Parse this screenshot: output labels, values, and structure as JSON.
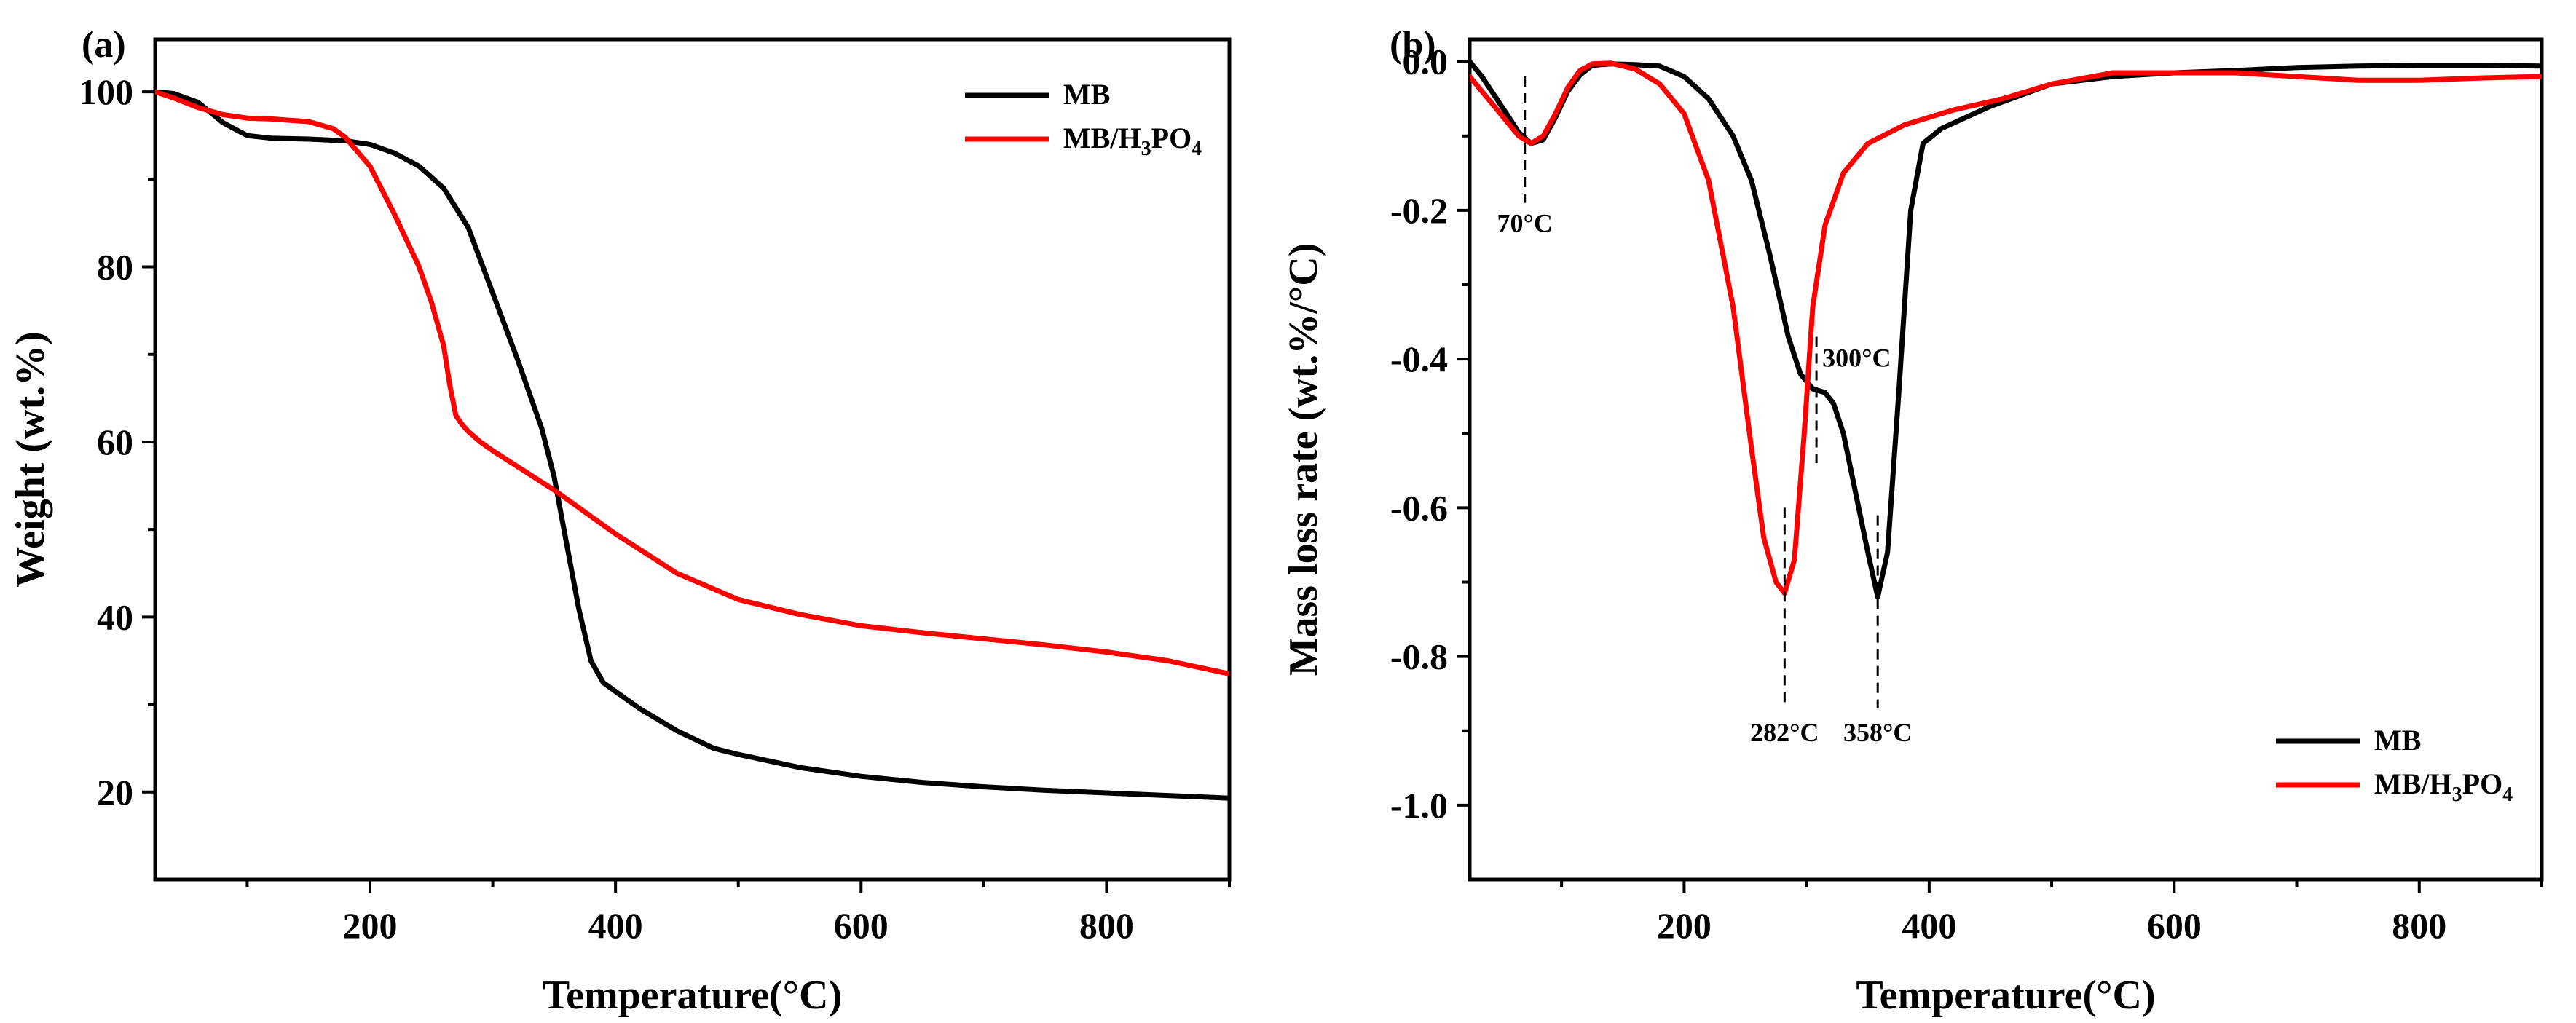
{
  "chart_data": [
    {
      "type": "line",
      "panel_label": "(a)",
      "xlabel": "Temperature(°C)",
      "ylabel": "Weight (wt.%)",
      "xlim": [
        25,
        900
      ],
      "ylim": [
        10,
        106
      ],
      "xticks": [
        200,
        400,
        600,
        800
      ],
      "yticks": [
        20,
        40,
        60,
        80,
        100
      ],
      "legend_position": "top-right",
      "series": [
        {
          "name": "MB",
          "color": "#000000",
          "x": [
            25,
            40,
            60,
            80,
            100,
            120,
            150,
            180,
            200,
            220,
            240,
            260,
            280,
            300,
            320,
            340,
            350,
            360,
            370,
            380,
            390,
            400,
            420,
            450,
            480,
            500,
            550,
            600,
            650,
            700,
            750,
            800,
            850,
            900
          ],
          "y": [
            100,
            99.8,
            98.8,
            96.5,
            95.0,
            94.7,
            94.6,
            94.4,
            94.0,
            93.0,
            91.5,
            89.0,
            84.5,
            77.0,
            69.5,
            61.5,
            56.0,
            48.5,
            41.0,
            35.0,
            32.5,
            31.5,
            29.5,
            27.0,
            25.0,
            24.3,
            22.8,
            21.8,
            21.1,
            20.6,
            20.2,
            19.9,
            19.6,
            19.3
          ]
        },
        {
          "name": "MB/H₃PO₄",
          "legend_name_base": "MB/H",
          "legend_sub1": "3",
          "legend_mid": "PO",
          "legend_sub2": "4",
          "color": "#ff0000",
          "x": [
            25,
            40,
            60,
            80,
            100,
            120,
            150,
            170,
            180,
            200,
            220,
            240,
            250,
            260,
            265,
            270,
            275,
            280,
            290,
            300,
            350,
            400,
            450,
            500,
            550,
            600,
            650,
            700,
            750,
            800,
            850,
            900
          ],
          "y": [
            100,
            99.3,
            98.2,
            97.4,
            97.0,
            96.9,
            96.6,
            95.8,
            94.8,
            91.5,
            86.0,
            80.0,
            76.0,
            71.0,
            66.5,
            63.0,
            62.0,
            61.2,
            60.0,
            59.0,
            54.5,
            49.5,
            45.0,
            42.0,
            40.3,
            39.0,
            38.2,
            37.5,
            36.8,
            36.0,
            35.0,
            33.5
          ]
        }
      ]
    },
    {
      "type": "line",
      "panel_label": "(b)",
      "xlabel": "Temperature(°C)",
      "ylabel": "Mass loss rate (wt.%/°C)",
      "xlim": [
        25,
        900
      ],
      "ylim": [
        -1.1,
        0.03
      ],
      "xticks": [
        200,
        400,
        600,
        800
      ],
      "yticks": [
        0.0,
        -0.2,
        -0.4,
        -0.6,
        -0.8,
        -1.0
      ],
      "ytick_labels": [
        "0.0",
        "-0.2",
        "-0.4",
        "-0.6",
        "-0.8",
        "-1.0"
      ],
      "legend_position": "bottom-right",
      "annotations": [
        {
          "text": "70°C",
          "x": 70,
          "y_line_top": -0.02,
          "y_line_bottom": -0.19
        },
        {
          "text": "300°C",
          "x": 308,
          "y_line_top": -0.37,
          "y_line_bottom": -0.54
        },
        {
          "text": "282°C",
          "x": 282,
          "y_line_top": -0.6,
          "y_line_bottom": -0.87
        },
        {
          "text": "358°C",
          "x": 358,
          "y_line_top": -0.61,
          "y_line_bottom": -0.87
        }
      ],
      "series": [
        {
          "name": "MB",
          "color": "#000000",
          "x": [
            25,
            35,
            45,
            55,
            65,
            75,
            85,
            95,
            105,
            115,
            125,
            140,
            160,
            180,
            200,
            220,
            240,
            255,
            270,
            285,
            295,
            305,
            315,
            322,
            330,
            340,
            350,
            358,
            366,
            375,
            385,
            395,
            410,
            450,
            500,
            550,
            600,
            650,
            700,
            750,
            800,
            850,
            900
          ],
          "y": [
            0.0,
            -0.02,
            -0.045,
            -0.07,
            -0.095,
            -0.11,
            -0.105,
            -0.075,
            -0.04,
            -0.018,
            -0.005,
            -0.003,
            -0.004,
            -0.006,
            -0.02,
            -0.05,
            -0.1,
            -0.16,
            -0.26,
            -0.37,
            -0.42,
            -0.44,
            -0.445,
            -0.46,
            -0.5,
            -0.58,
            -0.66,
            -0.72,
            -0.66,
            -0.45,
            -0.2,
            -0.11,
            -0.09,
            -0.06,
            -0.03,
            -0.02,
            -0.015,
            -0.012,
            -0.008,
            -0.006,
            -0.005,
            -0.005,
            -0.006
          ]
        },
        {
          "name": "MB/H₃PO₄",
          "legend_name_base": "MB/H",
          "legend_sub1": "3",
          "legend_mid": "PO",
          "legend_sub2": "4",
          "color": "#ff0000",
          "x": [
            25,
            35,
            45,
            55,
            65,
            75,
            85,
            95,
            105,
            115,
            125,
            140,
            160,
            180,
            200,
            220,
            240,
            255,
            265,
            275,
            282,
            290,
            298,
            305,
            315,
            330,
            350,
            380,
            420,
            460,
            500,
            550,
            600,
            650,
            700,
            750,
            800,
            850,
            900
          ],
          "y": [
            -0.02,
            -0.04,
            -0.06,
            -0.08,
            -0.1,
            -0.11,
            -0.1,
            -0.07,
            -0.035,
            -0.012,
            -0.003,
            -0.002,
            -0.01,
            -0.03,
            -0.07,
            -0.16,
            -0.33,
            -0.52,
            -0.64,
            -0.7,
            -0.715,
            -0.67,
            -0.5,
            -0.33,
            -0.22,
            -0.15,
            -0.11,
            -0.085,
            -0.065,
            -0.05,
            -0.03,
            -0.015,
            -0.015,
            -0.015,
            -0.02,
            -0.025,
            -0.025,
            -0.022,
            -0.02
          ]
        }
      ]
    }
  ]
}
